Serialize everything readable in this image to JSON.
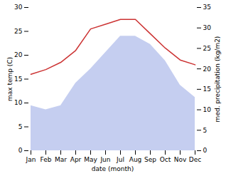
{
  "chart_data": {
    "type": "line",
    "categories": [
      "Jan",
      "Feb",
      "Mar",
      "Apr",
      "May",
      "Jun",
      "Jul",
      "Aug",
      "Sep",
      "Oct",
      "Nov",
      "Dec"
    ],
    "xlabel": "date (month)",
    "ylabel": "max temp (C)",
    "y2label": "med. precipitation (kg/m2)",
    "series": [
      {
        "type": "area",
        "axis": "y2",
        "color": "#c5cef0",
        "values": [
          11.0,
          10.0,
          11.0,
          16.5,
          20.0,
          24.0,
          28.0,
          28.0,
          26.0,
          22.0,
          16.0,
          13.0
        ]
      },
      {
        "type": "line",
        "color": "#cc3333",
        "values": [
          16.0,
          17.0,
          18.5,
          21.0,
          25.5,
          26.5,
          27.5,
          27.5,
          24.5,
          21.5,
          19.0,
          18.0
        ]
      }
    ],
    "ylim": [
      0,
      30
    ],
    "yticks": [
      0,
      5,
      10,
      15,
      20,
      25,
      30
    ],
    "y2lim": [
      0,
      35
    ],
    "y2ticks": [
      0,
      5,
      10,
      15,
      20,
      25,
      30,
      35
    ]
  }
}
